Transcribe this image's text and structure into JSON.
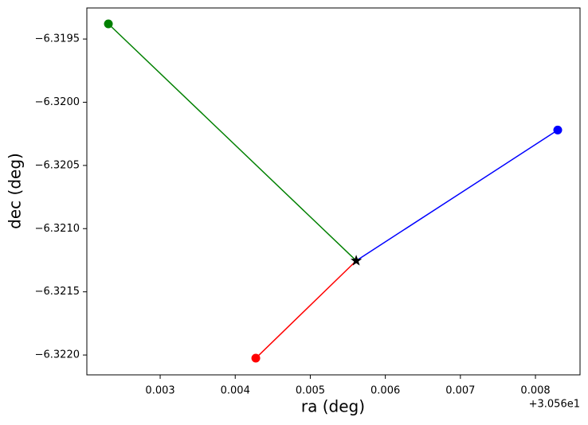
{
  "chart_data": {
    "type": "line",
    "xlabel": "ra (deg)",
    "ylabel": "dec (deg)",
    "x_offset_label": "+3.056e1",
    "xlim": [
      30.562023,
      30.568594
    ],
    "ylim": [
      -6.322157,
      -6.319254
    ],
    "xticks": [
      {
        "value": 30.563,
        "label": "0.003"
      },
      {
        "value": 30.564,
        "label": "0.004"
      },
      {
        "value": 30.565,
        "label": "0.005"
      },
      {
        "value": 30.566,
        "label": "0.006"
      },
      {
        "value": 30.567,
        "label": "0.007"
      },
      {
        "value": 30.568,
        "label": "0.008"
      }
    ],
    "yticks": [
      {
        "value": -6.3195,
        "label": "−6.3195"
      },
      {
        "value": -6.32,
        "label": "−6.3200"
      },
      {
        "value": -6.3205,
        "label": "−6.3205"
      },
      {
        "value": -6.321,
        "label": "−6.3210"
      },
      {
        "value": -6.3215,
        "label": "−6.3215"
      },
      {
        "value": -6.322,
        "label": "−6.3220"
      }
    ],
    "center": {
      "x": 30.565612,
      "y": -6.321254,
      "color": "#000000",
      "marker": "star"
    },
    "series": [
      {
        "color": "#ff0000",
        "x": 30.564274,
        "y": -6.322025
      },
      {
        "color": "#0000ff",
        "x": 30.568297,
        "y": -6.32022
      },
      {
        "color": "#008000",
        "x": 30.56231,
        "y": -6.31938
      }
    ]
  }
}
